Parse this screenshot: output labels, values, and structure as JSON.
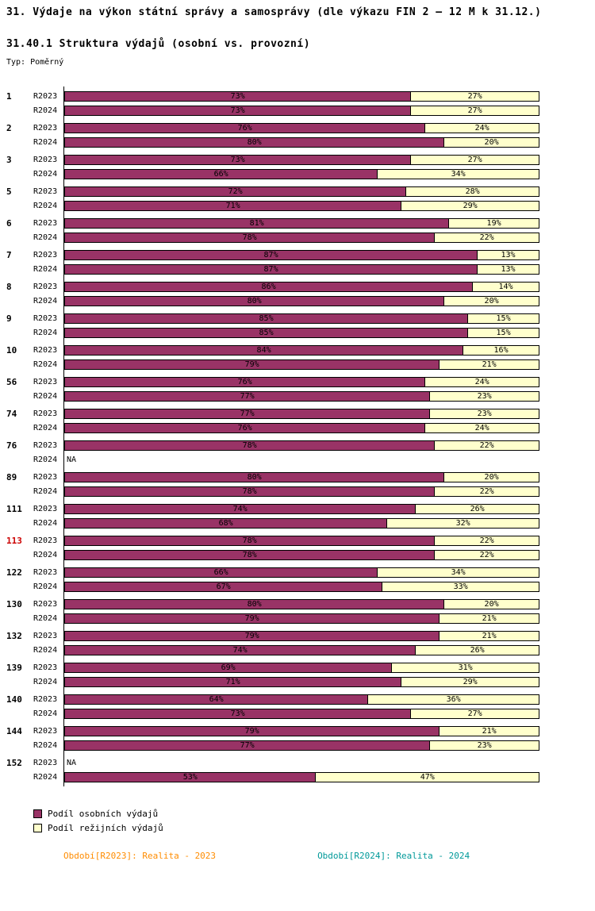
{
  "header": {
    "title": "31. Výdaje na výkon státní správy a samosprávy (dle výkazu FIN 2 – 12 M k 31.12.)",
    "subtitle": "31.40.1 Struktura výdajů (osobní vs. provozní)",
    "type_label": "Typ: Poměrný"
  },
  "chart_data": {
    "type": "bar",
    "orientation": "horizontal",
    "stacked": true,
    "unit": "%",
    "xlim": [
      0,
      100
    ],
    "na_label": "NA",
    "colors": {
      "personal": "#993366",
      "overhead": "#ffffcc",
      "highlight_id": "#cc0000"
    },
    "legend": [
      {
        "label": "Podíl osobních výdajů",
        "color": "#993366"
      },
      {
        "label": "Podíl režijních výdajů",
        "color": "#ffffcc"
      }
    ],
    "groups": [
      {
        "id": "1",
        "highlight": false,
        "rows": [
          {
            "period": "R2023",
            "personal": 73,
            "overhead": 27
          },
          {
            "period": "R2024",
            "personal": 73,
            "overhead": 27
          }
        ]
      },
      {
        "id": "2",
        "highlight": false,
        "rows": [
          {
            "period": "R2023",
            "personal": 76,
            "overhead": 24
          },
          {
            "period": "R2024",
            "personal": 80,
            "overhead": 20
          }
        ]
      },
      {
        "id": "3",
        "highlight": false,
        "rows": [
          {
            "period": "R2023",
            "personal": 73,
            "overhead": 27
          },
          {
            "period": "R2024",
            "personal": 66,
            "overhead": 34
          }
        ]
      },
      {
        "id": "5",
        "highlight": false,
        "rows": [
          {
            "period": "R2023",
            "personal": 72,
            "overhead": 28
          },
          {
            "period": "R2024",
            "personal": 71,
            "overhead": 29
          }
        ]
      },
      {
        "id": "6",
        "highlight": false,
        "rows": [
          {
            "period": "R2023",
            "personal": 81,
            "overhead": 19
          },
          {
            "period": "R2024",
            "personal": 78,
            "overhead": 22
          }
        ]
      },
      {
        "id": "7",
        "highlight": false,
        "rows": [
          {
            "period": "R2023",
            "personal": 87,
            "overhead": 13
          },
          {
            "period": "R2024",
            "personal": 87,
            "overhead": 13
          }
        ]
      },
      {
        "id": "8",
        "highlight": false,
        "rows": [
          {
            "period": "R2023",
            "personal": 86,
            "overhead": 14
          },
          {
            "period": "R2024",
            "personal": 80,
            "overhead": 20
          }
        ]
      },
      {
        "id": "9",
        "highlight": false,
        "rows": [
          {
            "period": "R2023",
            "personal": 85,
            "overhead": 15
          },
          {
            "period": "R2024",
            "personal": 85,
            "overhead": 15
          }
        ]
      },
      {
        "id": "10",
        "highlight": false,
        "rows": [
          {
            "period": "R2023",
            "personal": 84,
            "overhead": 16
          },
          {
            "period": "R2024",
            "personal": 79,
            "overhead": 21
          }
        ]
      },
      {
        "id": "56",
        "highlight": false,
        "rows": [
          {
            "period": "R2023",
            "personal": 76,
            "overhead": 24
          },
          {
            "period": "R2024",
            "personal": 77,
            "overhead": 23
          }
        ]
      },
      {
        "id": "74",
        "highlight": false,
        "rows": [
          {
            "period": "R2023",
            "personal": 77,
            "overhead": 23
          },
          {
            "period": "R2024",
            "personal": 76,
            "overhead": 24
          }
        ]
      },
      {
        "id": "76",
        "highlight": false,
        "rows": [
          {
            "period": "R2023",
            "personal": 78,
            "overhead": 22
          },
          {
            "period": "R2024",
            "na": true
          }
        ]
      },
      {
        "id": "89",
        "highlight": false,
        "rows": [
          {
            "period": "R2023",
            "personal": 80,
            "overhead": 20
          },
          {
            "period": "R2024",
            "personal": 78,
            "overhead": 22
          }
        ]
      },
      {
        "id": "111",
        "highlight": false,
        "rows": [
          {
            "period": "R2023",
            "personal": 74,
            "overhead": 26
          },
          {
            "period": "R2024",
            "personal": 68,
            "overhead": 32
          }
        ]
      },
      {
        "id": "113",
        "highlight": true,
        "rows": [
          {
            "period": "R2023",
            "personal": 78,
            "overhead": 22
          },
          {
            "period": "R2024",
            "personal": 78,
            "overhead": 22
          }
        ]
      },
      {
        "id": "122",
        "highlight": false,
        "rows": [
          {
            "period": "R2023",
            "personal": 66,
            "overhead": 34
          },
          {
            "period": "R2024",
            "personal": 67,
            "overhead": 33
          }
        ]
      },
      {
        "id": "130",
        "highlight": false,
        "rows": [
          {
            "period": "R2023",
            "personal": 80,
            "overhead": 20
          },
          {
            "period": "R2024",
            "personal": 79,
            "overhead": 21
          }
        ]
      },
      {
        "id": "132",
        "highlight": false,
        "rows": [
          {
            "period": "R2023",
            "personal": 79,
            "overhead": 21
          },
          {
            "period": "R2024",
            "personal": 74,
            "overhead": 26
          }
        ]
      },
      {
        "id": "139",
        "highlight": false,
        "rows": [
          {
            "period": "R2023",
            "personal": 69,
            "overhead": 31
          },
          {
            "period": "R2024",
            "personal": 71,
            "overhead": 29
          }
        ]
      },
      {
        "id": "140",
        "highlight": false,
        "rows": [
          {
            "period": "R2023",
            "personal": 64,
            "overhead": 36
          },
          {
            "period": "R2024",
            "personal": 73,
            "overhead": 27
          }
        ]
      },
      {
        "id": "144",
        "highlight": false,
        "rows": [
          {
            "period": "R2023",
            "personal": 79,
            "overhead": 21
          },
          {
            "period": "R2024",
            "personal": 77,
            "overhead": 23
          }
        ]
      },
      {
        "id": "152",
        "highlight": false,
        "rows": [
          {
            "period": "R2023",
            "na": true
          },
          {
            "period": "R2024",
            "personal": 53,
            "overhead": 47
          }
        ]
      }
    ]
  },
  "footer": {
    "left": "Období[R2023]: Realita - 2023",
    "left_color": "#ff8c00",
    "right": "Období[R2024]: Realita - 2024",
    "right_color": "#009999"
  }
}
